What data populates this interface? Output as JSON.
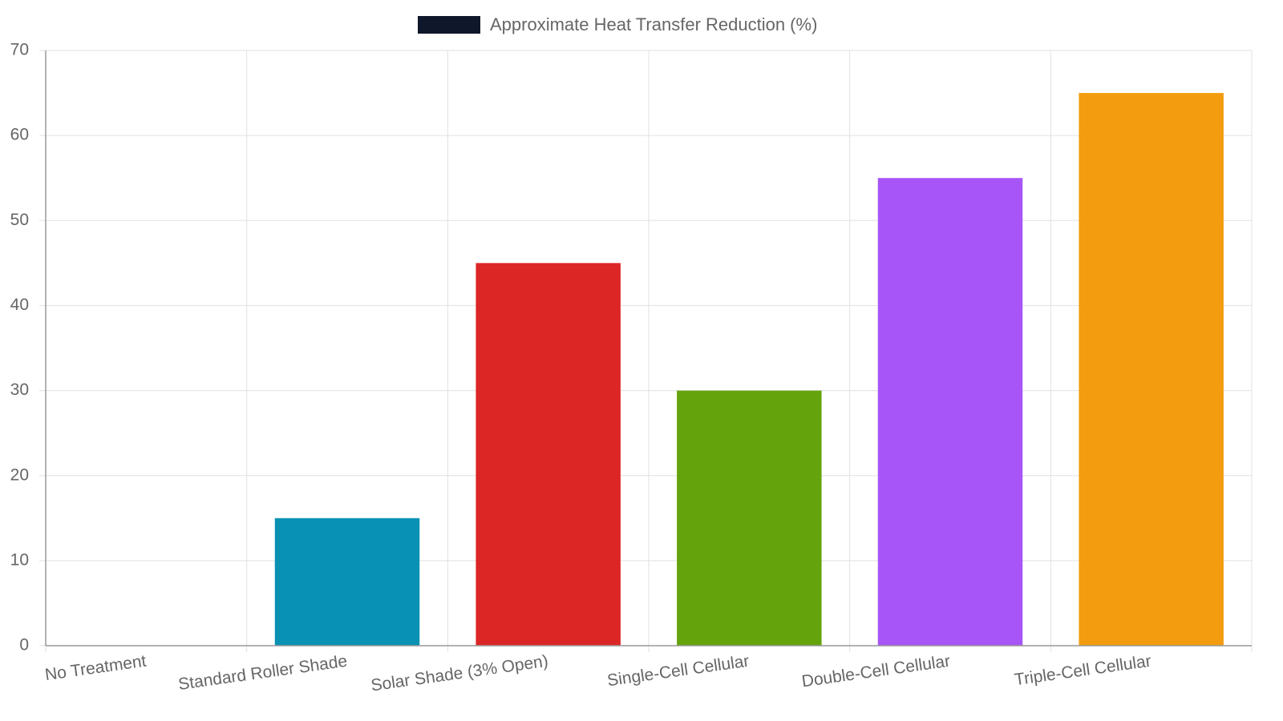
{
  "chart_data": {
    "type": "bar",
    "categories": [
      "No Treatment",
      "Standard Roller Shade",
      "Solar Shade (3% Open)",
      "Single-Cell Cellular",
      "Double-Cell Cellular",
      "Triple-Cell Cellular"
    ],
    "series": [
      {
        "name": "Approximate Heat Transfer Reduction (%)",
        "color": "#0f172a",
        "values": [
          0,
          15,
          45,
          30,
          55,
          65
        ],
        "colors": [
          "#64748b",
          "#0891b2",
          "#dc2626",
          "#65a30d",
          "#a855f7",
          "#f39c0f"
        ]
      }
    ],
    "ylim": [
      0,
      70
    ],
    "yticks": [
      0,
      10,
      20,
      30,
      40,
      50,
      60,
      70
    ],
    "grid": true,
    "legend": "top"
  }
}
